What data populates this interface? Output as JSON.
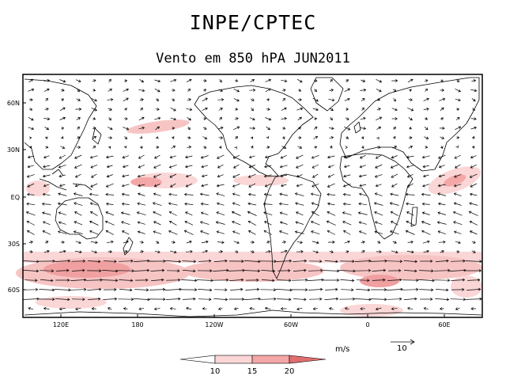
{
  "header": {
    "title": "INPE/CPTEC",
    "subtitle": "Vento em 850 hPA JUN2011"
  },
  "map": {
    "lat_labels": [
      "60N",
      "30N",
      "EQ",
      "30S",
      "60S"
    ],
    "lon_labels": [
      "120E",
      "180",
      "120W",
      "60W",
      "0",
      "60E"
    ],
    "colors": {
      "frame": "#000000",
      "coast": "#000000",
      "arrow": "#000000"
    }
  },
  "legend": {
    "unit_label": "m/s",
    "ref_vector_label": "10",
    "levels": [
      "10",
      "15",
      "20"
    ],
    "colors": [
      "#ffffff",
      "#fbd6d6",
      "#f4a7a7",
      "#e06e6e"
    ]
  }
}
